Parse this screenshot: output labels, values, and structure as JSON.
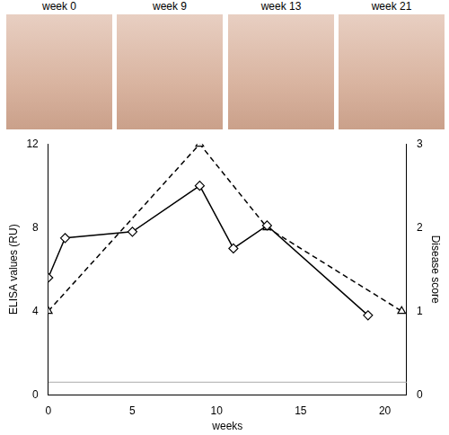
{
  "chart_data": {
    "type": "line",
    "x_label": "weeks",
    "y_label": "ELISA values (RU)",
    "y2_label": "Disease score",
    "xlim": [
      0,
      21.3
    ],
    "xticks": [
      0,
      5,
      10,
      15,
      20
    ],
    "ylim": [
      0,
      12
    ],
    "yticks": [
      0,
      4,
      8,
      12
    ],
    "y2lim": [
      0,
      3
    ],
    "y2ticks": [
      0,
      1,
      2,
      3
    ],
    "grid": false,
    "series": [
      {
        "color": "#000000",
        "marker": "diamond",
        "line_style": "solid",
        "axis": "y",
        "x": [
          0,
          1,
          5,
          9,
          11,
          13,
          19
        ],
        "values": [
          5.6,
          7.5,
          7.8,
          10,
          7,
          8.1,
          3.8
        ]
      },
      {
        "color": "#000000",
        "marker": "triangle",
        "line_style": "dashed",
        "axis": "y2",
        "x": [
          0,
          9,
          13,
          21
        ],
        "values": [
          1,
          3,
          2,
          1
        ]
      },
      {
        "color": "#aaaaaa",
        "marker": "none",
        "line_style": "solid",
        "axis": "y",
        "x": [
          0,
          21.3
        ],
        "values": [
          0.6,
          0.6
        ]
      }
    ]
  },
  "photos": {
    "labels": [
      "week 0",
      "week 9",
      "week 13",
      "week 21"
    ]
  }
}
